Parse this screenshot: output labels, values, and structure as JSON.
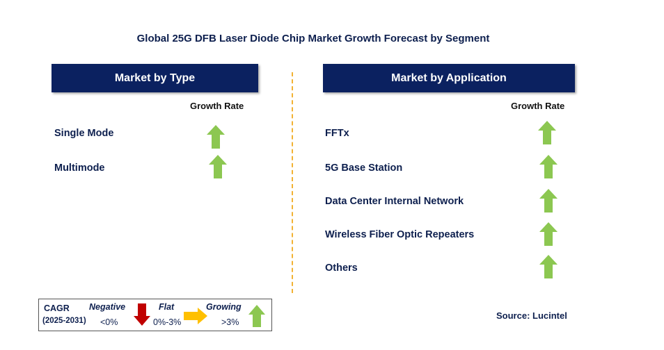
{
  "title": "Global 25G DFB Laser Diode Chip Market Growth Forecast by Segment",
  "left_panel": {
    "header": "Market by Type",
    "growth_rate_label": "Growth Rate",
    "rows": [
      {
        "label": "Single Mode",
        "trend": "growing"
      },
      {
        "label": "Multimode",
        "trend": "growing"
      }
    ]
  },
  "right_panel": {
    "header": "Market by Application",
    "growth_rate_label": "Growth Rate",
    "rows": [
      {
        "label": "FFTx",
        "trend": "growing"
      },
      {
        "label": "5G Base Station",
        "trend": "growing"
      },
      {
        "label": "Data Center Internal Network",
        "trend": "growing"
      },
      {
        "label": "Wireless Fiber Optic Repeaters",
        "trend": "growing"
      },
      {
        "label": "Others",
        "trend": "growing"
      }
    ]
  },
  "legend": {
    "cagr_label": "CAGR",
    "period": "(2025-2031)",
    "negative_label": "Negative",
    "negative_range": "<0%",
    "flat_label": "Flat",
    "flat_range": "0%-3%",
    "growing_label": "Growing",
    "growing_range": ">3%"
  },
  "source": "Source: Lucintel",
  "colors": {
    "header_bg": "#0b2160",
    "growing": "#8cc751",
    "negative": "#c00000",
    "flat": "#ffc000",
    "divider": "#f2b233"
  }
}
